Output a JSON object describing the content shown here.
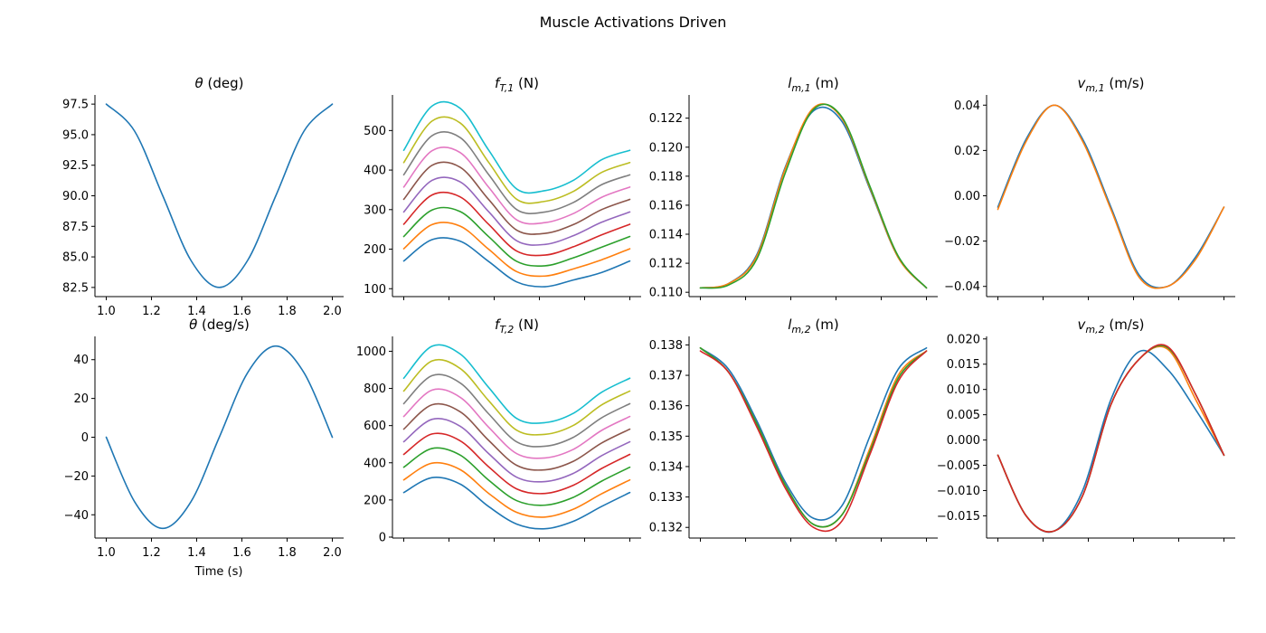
{
  "figure": {
    "title": "Muscle Activations Driven",
    "x_axis_label": "Time (s)",
    "series_colors": [
      "#1f77b4",
      "#ff7f0e",
      "#2ca02c",
      "#d62728",
      "#9467bd",
      "#8c564b",
      "#e377c2",
      "#7f7f7f",
      "#bcbd22",
      "#17becf"
    ]
  },
  "chart_data": [
    {
      "type": "line",
      "title_parts": [
        "θ",
        "",
        " (deg)"
      ],
      "title_dot": false,
      "x": [
        1.0,
        1.125,
        1.25,
        1.375,
        1.5,
        1.625,
        1.75,
        1.875,
        2.0
      ],
      "xlim": [
        0.95,
        2.05
      ],
      "ylim": [
        81.75,
        98.25
      ],
      "xticks": [
        1.0,
        1.2,
        1.4,
        1.6,
        1.8,
        2.0
      ],
      "xtick_labels": [
        "1.0",
        "1.2",
        "1.4",
        "1.6",
        "1.8",
        "2.0"
      ],
      "yticks": [
        82.5,
        85.0,
        87.5,
        90.0,
        92.5,
        95.0,
        97.5
      ],
      "ytick_labels": [
        "82.5",
        "85.0",
        "87.5",
        "90.0",
        "92.5",
        "95.0",
        "97.5"
      ],
      "series": [
        {
          "values": [
            97.5,
            95.3,
            90.0,
            84.7,
            82.5,
            84.7,
            90.0,
            95.3,
            97.5
          ]
        }
      ]
    },
    {
      "type": "line",
      "title_parts": [
        "f",
        "T,1",
        " (N)"
      ],
      "title_dot": false,
      "x": [
        1.0,
        1.125,
        1.25,
        1.375,
        1.5,
        1.625,
        1.75,
        1.875,
        2.0
      ],
      "xlim": [
        0.95,
        2.05
      ],
      "ylim": [
        80,
        590
      ],
      "xticks": [
        1.0,
        1.2,
        1.4,
        1.6,
        1.8,
        2.0
      ],
      "xtick_labels": [],
      "yticks": [
        100,
        200,
        300,
        400,
        500
      ],
      "ytick_labels": [
        "100",
        "200",
        "300",
        "400",
        "500"
      ],
      "series": [
        {
          "values": [
            170,
            224,
            220,
            169,
            117,
            105,
            122,
            141,
            170
          ]
        },
        {
          "values": [
            201,
            262,
            258,
            200,
            143,
            132,
            150,
            173,
            201
          ]
        },
        {
          "values": [
            232,
            299,
            295,
            232,
            169,
            158,
            178,
            205,
            232
          ]
        },
        {
          "values": [
            263,
            337,
            332,
            263,
            195,
            185,
            206,
            236,
            263
          ]
        },
        {
          "values": [
            294,
            374,
            370,
            295,
            221,
            212,
            234,
            268,
            294
          ]
        },
        {
          "values": [
            326,
            412,
            407,
            326,
            248,
            240,
            262,
            300,
            326
          ]
        },
        {
          "values": [
            357,
            449,
            444,
            357,
            274,
            267,
            290,
            331,
            357
          ]
        },
        {
          "values": [
            388,
            487,
            482,
            389,
            300,
            294,
            318,
            363,
            388
          ]
        },
        {
          "values": [
            419,
            524,
            519,
            420,
            326,
            321,
            346,
            394,
            419
          ]
        },
        {
          "values": [
            450,
            562,
            556,
            451,
            352,
            348,
            374,
            426,
            450
          ]
        }
      ]
    },
    {
      "type": "line",
      "title_parts": [
        "l",
        "m,1",
        " (m)"
      ],
      "title_dot": false,
      "x": [
        1.0,
        1.125,
        1.25,
        1.375,
        1.5,
        1.625,
        1.75,
        1.875,
        2.0
      ],
      "xlim": [
        0.95,
        2.05
      ],
      "ylim": [
        0.1097,
        0.1236
      ],
      "xticks": [
        1.0,
        1.2,
        1.4,
        1.6,
        1.8,
        2.0
      ],
      "xtick_labels": [],
      "yticks": [
        0.11,
        0.112,
        0.114,
        0.116,
        0.118,
        0.12,
        0.122
      ],
      "ytick_labels": [
        "0.110",
        "0.112",
        "0.114",
        "0.116",
        "0.118",
        "0.120",
        "0.122"
      ],
      "series": [
        {
          "values": [
            0.1103,
            0.1106,
            0.1126,
            0.1186,
            0.1225,
            0.1218,
            0.1171,
            0.1124,
            0.1103
          ]
        },
        {
          "values": [
            0.1103,
            0.1106,
            0.1125,
            0.1185,
            0.1227,
            0.122,
            0.1172,
            0.1124,
            0.1103
          ]
        },
        {
          "values": [
            0.1103,
            0.1105,
            0.1123,
            0.1182,
            0.1226,
            0.1221,
            0.1173,
            0.1125,
            0.1103
          ]
        }
      ]
    },
    {
      "type": "line",
      "title_parts": [
        "v",
        "m,1",
        " (m/s)"
      ],
      "title_dot": false,
      "x": [
        1.0,
        1.125,
        1.25,
        1.375,
        1.5,
        1.625,
        1.75,
        1.875,
        2.0
      ],
      "xlim": [
        0.95,
        2.05
      ],
      "ylim": [
        -0.0445,
        0.0445
      ],
      "xticks": [
        1.0,
        1.2,
        1.4,
        1.6,
        1.8,
        2.0
      ],
      "xtick_labels": [],
      "yticks": [
        -0.04,
        -0.02,
        0.0,
        0.02,
        0.04
      ],
      "ytick_labels": [
        "−0.04",
        "−0.02",
        "0.00",
        "0.02",
        "0.04"
      ],
      "series": [
        {
          "values": [
            -0.005,
            0.025,
            0.04,
            0.025,
            -0.005,
            -0.035,
            -0.04,
            -0.027,
            -0.005
          ]
        },
        {
          "values": [
            -0.006,
            0.024,
            0.04,
            0.024,
            -0.006,
            -0.036,
            -0.04,
            -0.028,
            -0.005
          ]
        }
      ]
    },
    {
      "type": "line",
      "title_parts": [
        "θ",
        "",
        " (deg/s)"
      ],
      "title_dot": true,
      "x": [
        1.0,
        1.125,
        1.25,
        1.375,
        1.5,
        1.625,
        1.75,
        1.875,
        2.0
      ],
      "xlim": [
        0.95,
        2.05
      ],
      "ylim": [
        -52,
        52
      ],
      "xticks": [
        1.0,
        1.2,
        1.4,
        1.6,
        1.8,
        2.0
      ],
      "xtick_labels": [
        "1.0",
        "1.2",
        "1.4",
        "1.6",
        "1.8",
        "2.0"
      ],
      "yticks": [
        -40,
        -20,
        0,
        20,
        40
      ],
      "ytick_labels": [
        "−40",
        "−20",
        "0",
        "20",
        "40"
      ],
      "series": [
        {
          "values": [
            0,
            -33.2,
            -47,
            -33.2,
            0,
            33.2,
            47,
            33.2,
            0
          ]
        }
      ]
    },
    {
      "type": "line",
      "title_parts": [
        "f",
        "T,2",
        " (N)"
      ],
      "title_dot": false,
      "x": [
        1.0,
        1.125,
        1.25,
        1.375,
        1.5,
        1.625,
        1.75,
        1.875,
        2.0
      ],
      "xlim": [
        0.95,
        2.05
      ],
      "ylim": [
        -5,
        1080
      ],
      "xticks": [
        1.0,
        1.2,
        1.4,
        1.6,
        1.8,
        2.0
      ],
      "xtick_labels": [],
      "yticks": [
        0,
        200,
        400,
        600,
        800,
        1000
      ],
      "ytick_labels": [
        "0",
        "200",
        "400",
        "600",
        "800",
        "1000"
      ],
      "series": [
        {
          "values": [
            240,
            320,
            285,
            165,
            70,
            45,
            85,
            165,
            240
          ]
        },
        {
          "values": [
            308,
            398,
            363,
            236,
            133,
            108,
            150,
            233,
            308
          ]
        },
        {
          "values": [
            376,
            477,
            441,
            307,
            196,
            172,
            214,
            301,
            376
          ]
        },
        {
          "values": [
            445,
            555,
            518,
            379,
            259,
            235,
            279,
            369,
            445
          ]
        },
        {
          "values": [
            513,
            634,
            596,
            450,
            322,
            299,
            343,
            438,
            513
          ]
        },
        {
          "values": [
            581,
            712,
            674,
            521,
            386,
            362,
            408,
            506,
            581
          ]
        },
        {
          "values": [
            649,
            791,
            752,
            592,
            449,
            426,
            472,
            574,
            649
          ]
        },
        {
          "values": [
            718,
            869,
            829,
            664,
            512,
            489,
            537,
            642,
            718
          ]
        },
        {
          "values": [
            786,
            948,
            907,
            735,
            575,
            553,
            601,
            711,
            786
          ]
        },
        {
          "values": [
            855,
            1027,
            985,
            806,
            638,
            616,
            666,
            779,
            855
          ]
        }
      ]
    },
    {
      "type": "line",
      "title_parts": [
        "l",
        "m,2",
        " (m)"
      ],
      "title_dot": false,
      "x": [
        1.0,
        1.125,
        1.25,
        1.375,
        1.5,
        1.625,
        1.75,
        1.875,
        2.0
      ],
      "xlim": [
        0.95,
        2.05
      ],
      "ylim": [
        0.13165,
        0.13828
      ],
      "xticks": [
        1.0,
        1.2,
        1.4,
        1.6,
        1.8,
        2.0
      ],
      "xtick_labels": [],
      "yticks": [
        0.132,
        0.133,
        0.134,
        0.135,
        0.136,
        0.137,
        0.138
      ],
      "ytick_labels": [
        "0.132",
        "0.133",
        "0.134",
        "0.135",
        "0.136",
        "0.137",
        "0.138"
      ],
      "series": [
        {
          "values": [
            0.1379,
            0.1372,
            0.1355,
            0.1335,
            0.1323,
            0.1327,
            0.135,
            0.1372,
            0.1379
          ]
        },
        {
          "values": [
            0.1379,
            0.1371,
            0.1354,
            0.1334,
            0.1321,
            0.1324,
            0.1346,
            0.137,
            0.1378
          ]
        },
        {
          "values": [
            0.1379,
            0.1371,
            0.1354,
            0.1334,
            0.1321,
            0.1324,
            0.1345,
            0.1369,
            0.1378
          ]
        },
        {
          "values": [
            0.1378,
            0.1371,
            0.1353,
            0.1333,
            0.132,
            0.1322,
            0.1344,
            0.1368,
            0.1378
          ]
        }
      ]
    },
    {
      "type": "line",
      "title_parts": [
        "v",
        "m,2",
        " (m/s)"
      ],
      "title_dot": false,
      "x": [
        1.0,
        1.125,
        1.25,
        1.375,
        1.5,
        1.625,
        1.75,
        1.875,
        2.0
      ],
      "xlim": [
        0.95,
        2.05
      ],
      "ylim": [
        -0.0194,
        0.0205
      ],
      "xticks": [
        1.0,
        1.2,
        1.4,
        1.6,
        1.8,
        2.0
      ],
      "xtick_labels": [],
      "yticks": [
        -0.015,
        -0.01,
        -0.005,
        0.0,
        0.005,
        0.01,
        0.015,
        0.02
      ],
      "ytick_labels": [
        "−0.015",
        "−0.010",
        "−0.005",
        "0.000",
        "0.005",
        "0.010",
        "0.015",
        "0.020"
      ],
      "series": [
        {
          "values": [
            -0.003,
            -0.015,
            -0.018,
            -0.01,
            0.008,
            0.0175,
            0.014,
            0.006,
            -0.003
          ]
        },
        {
          "values": [
            -0.003,
            -0.015,
            -0.018,
            -0.011,
            0.007,
            0.016,
            0.018,
            0.008,
            -0.003
          ]
        },
        {
          "values": [
            -0.003,
            -0.015,
            -0.018,
            -0.011,
            0.007,
            0.016,
            0.0183,
            0.009,
            -0.003
          ]
        },
        {
          "values": [
            -0.003,
            -0.015,
            -0.018,
            -0.011,
            0.007,
            0.016,
            0.0185,
            0.009,
            -0.003
          ]
        }
      ]
    }
  ]
}
